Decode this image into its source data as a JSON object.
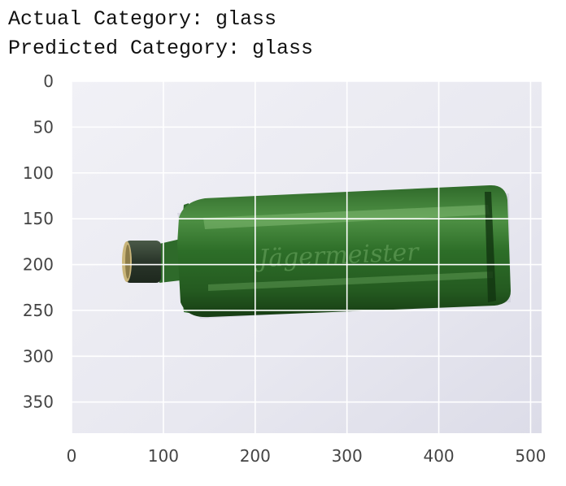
{
  "output": {
    "actual_line": "Actual Category: glass",
    "predicted_line": "Predicted Category: glass"
  },
  "image_plot": {
    "x_ticks": [
      "0",
      "100",
      "200",
      "300",
      "400",
      "500"
    ],
    "y_ticks": [
      "0",
      "50",
      "100",
      "150",
      "200",
      "250",
      "300",
      "350"
    ],
    "x_tick_values": [
      0,
      100,
      200,
      300,
      400,
      500
    ],
    "y_tick_values": [
      0,
      50,
      100,
      150,
      200,
      250,
      300,
      350
    ],
    "xlim": [
      0,
      512
    ],
    "ylim": [
      384,
      0
    ],
    "grid": true,
    "colors": {
      "photo_background": "#e9e9f1",
      "bottle_dark": "#1f4d1c",
      "bottle_mid": "#3d7f35",
      "bottle_light": "#6aa65b",
      "cap": "#3b4a3a",
      "cap_ring": "#c9b57a",
      "grid": "#ffffff"
    },
    "bottle_label_text": "Jägermeister"
  }
}
